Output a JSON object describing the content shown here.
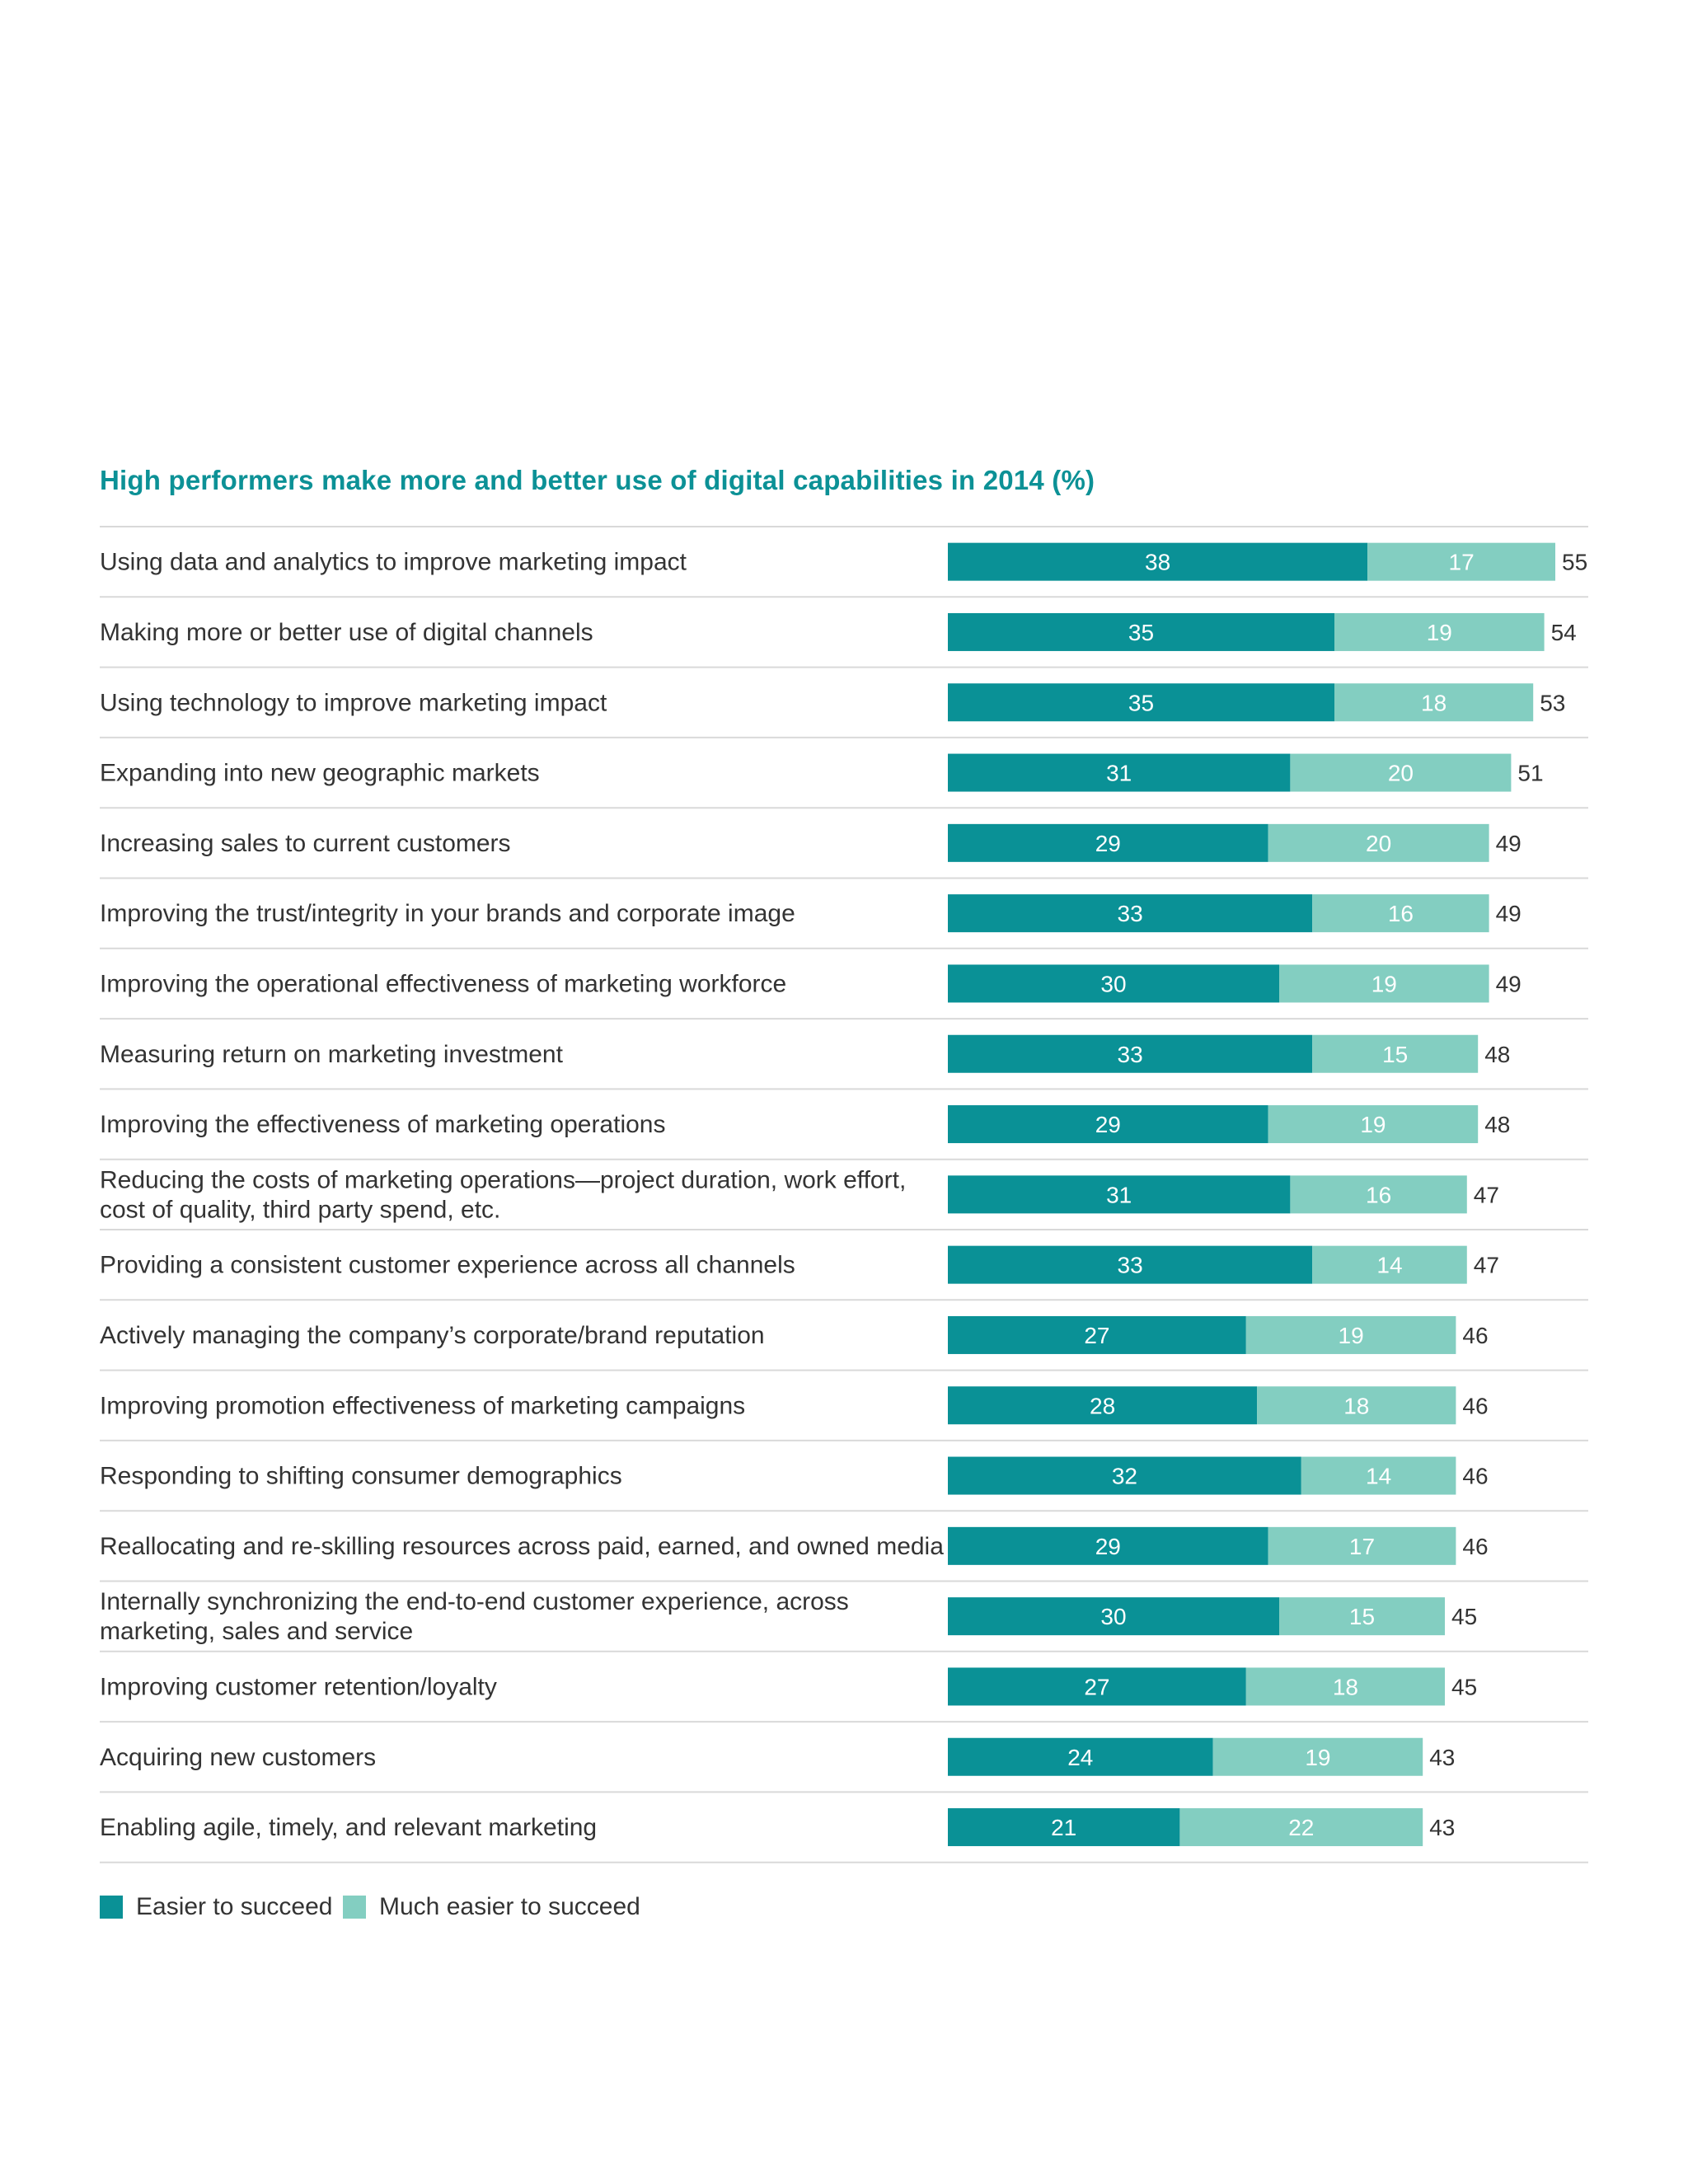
{
  "chart_data": {
    "type": "bar",
    "orientation": "horizontal",
    "stacked": true,
    "title": "High performers make more and better use of digital capabilities in 2014 (%)",
    "categories": [
      "Using data and analytics to improve marketing impact",
      "Making more or better use of digital channels",
      "Using technology to improve marketing impact",
      "Expanding into new geographic markets",
      "Increasing sales to current customers",
      "Improving the trust/integrity in your brands and corporate image",
      "Improving the operational effectiveness of marketing workforce",
      "Measuring return on marketing investment",
      "Improving the effectiveness of marketing operations",
      "Reducing the costs of marketing operations—project duration, work effort,\ncost of quality, third party spend, etc.",
      "Providing a consistent customer experience across all channels",
      "Actively managing the company’s corporate/brand reputation",
      "Improving promotion effectiveness of marketing campaigns",
      "Responding to shifting consumer demographics",
      "Reallocating and re-skilling resources across paid, earned, and owned media",
      "Internally synchronizing the end-to-end customer experience, across\nmarketing, sales and service",
      "Improving customer retention/loyalty",
      "Acquiring new customers",
      "Enabling agile, timely, and relevant marketing"
    ],
    "series": [
      {
        "name": "Easier to succeed",
        "color": "#0a9196",
        "values": [
          38,
          35,
          35,
          31,
          29,
          33,
          30,
          33,
          29,
          31,
          33,
          27,
          28,
          32,
          29,
          30,
          27,
          24,
          21
        ]
      },
      {
        "name": "Much easier to succeed",
        "color": "#83cec1",
        "values": [
          17,
          19,
          18,
          20,
          20,
          16,
          19,
          15,
          19,
          16,
          14,
          19,
          18,
          14,
          17,
          15,
          18,
          19,
          22
        ]
      }
    ],
    "totals": [
      55,
      54,
      53,
      51,
      49,
      49,
      49,
      48,
      48,
      47,
      47,
      46,
      46,
      46,
      46,
      45,
      45,
      43,
      43
    ],
    "legend_position": "bottom-left",
    "grid": false
  }
}
